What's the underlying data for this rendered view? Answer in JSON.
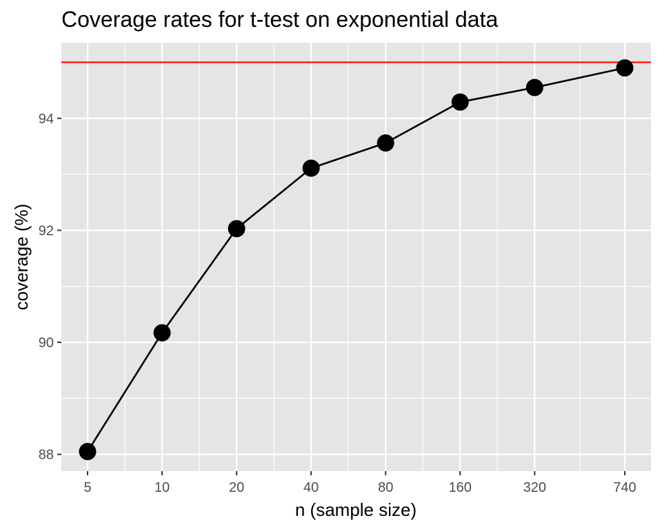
{
  "chart_data": {
    "type": "line",
    "title": "Coverage rates for t-test on exponential data",
    "xlabel": "n (sample size)",
    "ylabel": "coverage (%)",
    "x_scale": "log2",
    "x": [
      5,
      10,
      20,
      40,
      80,
      160,
      320,
      740
    ],
    "x_tick_labels": [
      "5",
      "10",
      "20",
      "40",
      "80",
      "160",
      "320",
      "740"
    ],
    "y_ticks": [
      88,
      90,
      92,
      94
    ],
    "y_tick_labels": [
      "88",
      "90",
      "92",
      "94"
    ],
    "ylim": [
      87.7,
      95.35
    ],
    "grid": true,
    "series": [
      {
        "values": [
          88.05,
          90.17,
          92.03,
          93.11,
          93.56,
          94.29,
          94.55,
          94.9
        ]
      }
    ],
    "reference_line": {
      "y": 95
    },
    "colors": {
      "panel": "#e5e5e5",
      "grid": "#ffffff",
      "line": "#000000",
      "points": "#000000",
      "reference": "#ff0000"
    }
  }
}
